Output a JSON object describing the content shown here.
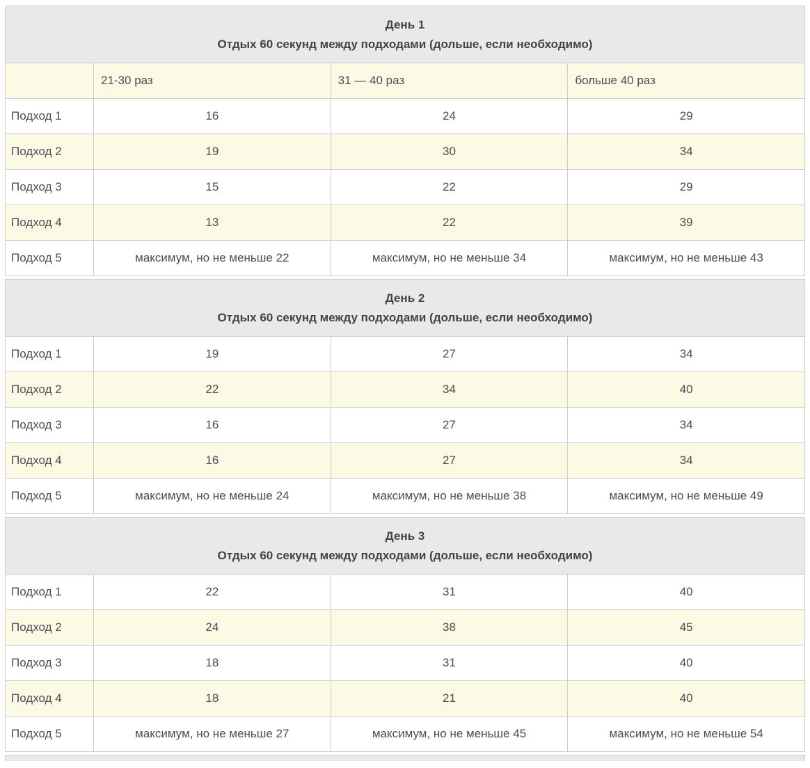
{
  "page": {
    "language": "ru",
    "description_labels": {
      "rest_subtitle": "Отдых 60 секунд между подходами (дольше, если необходимо)"
    }
  },
  "colors": {
    "day_header_bg": "#e9e9e9",
    "stripe_bg": "#fcf9e4",
    "row_bg": "#ffffff",
    "border": "#cccccc",
    "text": "#4a4e55",
    "header_text": "#3f444c"
  },
  "column_headers": [
    "21-30 раз",
    "31 — 40 раз",
    "больше 40 раз"
  ],
  "days": [
    {
      "title": "День 1",
      "subtitle": "Отдых 60 секунд между подходами (дольше, если необходимо)",
      "has_column_headers": true,
      "rows": [
        {
          "label": "Подход 1",
          "values": [
            "16",
            "24",
            "29"
          ]
        },
        {
          "label": "Подход 2",
          "values": [
            "19",
            "30",
            "34"
          ]
        },
        {
          "label": "Подход 3",
          "values": [
            "15",
            "22",
            "29"
          ]
        },
        {
          "label": "Подход 4",
          "values": [
            "13",
            "22",
            "39"
          ]
        },
        {
          "label": "Подход 5",
          "values": [
            "максимум, но не меньше 22",
            "максимум, но не меньше 34",
            "максимум, но не меньше 43"
          ]
        }
      ]
    },
    {
      "title": "День 2",
      "subtitle": "Отдых 60 секунд между подходами (дольше, если необходимо)",
      "has_column_headers": false,
      "rows": [
        {
          "label": "Подход 1",
          "values": [
            "19",
            "27",
            "34"
          ]
        },
        {
          "label": "Подход 2",
          "values": [
            "22",
            "34",
            "40"
          ]
        },
        {
          "label": "Подход 3",
          "values": [
            "16",
            "27",
            "34"
          ]
        },
        {
          "label": "Подход 4",
          "values": [
            "16",
            "27",
            "34"
          ]
        },
        {
          "label": "Подход 5",
          "values": [
            "максимум, но не меньше 24",
            "максимум, но не меньше 38",
            "максимум, но не меньше 49"
          ]
        }
      ]
    },
    {
      "title": "День 3",
      "subtitle": "Отдых 60 секунд между подходами (дольше, если необходимо)",
      "has_column_headers": false,
      "rows": [
        {
          "label": "Подход 1",
          "values": [
            "22",
            "31",
            "40"
          ]
        },
        {
          "label": "Подход 2",
          "values": [
            "24",
            "38",
            "45"
          ]
        },
        {
          "label": "Подход 3",
          "values": [
            "18",
            "31",
            "40"
          ]
        },
        {
          "label": "Подход 4",
          "values": [
            "18",
            "21",
            "40"
          ]
        },
        {
          "label": "Подход 5",
          "values": [
            "максимум, но не меньше 27",
            "максимум, но не меньше 45",
            "максимум, но не меньше 54"
          ]
        }
      ]
    }
  ]
}
